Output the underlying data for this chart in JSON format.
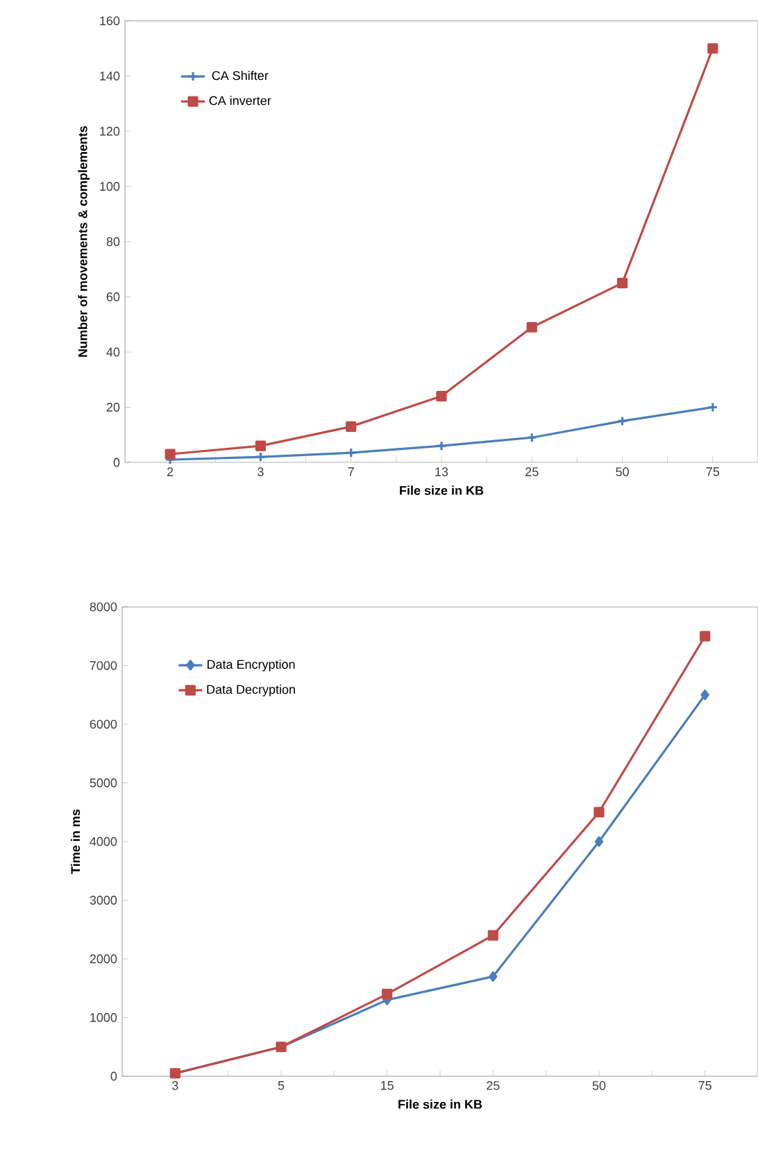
{
  "chart_data": [
    {
      "type": "line",
      "xlabel": "File size in KB",
      "ylabel": "Number of movements & complements",
      "categories": [
        "2",
        "3",
        "7",
        "13",
        "25",
        "50",
        "75"
      ],
      "ylim": [
        0,
        160
      ],
      "yticks": [
        0,
        20,
        40,
        60,
        80,
        100,
        120,
        140,
        160
      ],
      "legend": "top left",
      "grid": false,
      "series": [
        {
          "name": "CA Shifter",
          "color": "#4a7ebb",
          "marker": "cross",
          "values": [
            1,
            2,
            3.5,
            6,
            9,
            15,
            20
          ]
        },
        {
          "name": "CA inverter",
          "color": "#be4b48",
          "marker": "square",
          "values": [
            3,
            6,
            13,
            24,
            49,
            65,
            150
          ]
        }
      ]
    },
    {
      "type": "line",
      "xlabel": "File size in KB",
      "ylabel": "Time in ms",
      "categories": [
        "3",
        "5",
        "15",
        "25",
        "50",
        "75"
      ],
      "ylim": [
        0,
        8000
      ],
      "yticks": [
        0,
        1000,
        2000,
        3000,
        4000,
        5000,
        6000,
        7000,
        8000
      ],
      "legend": "top left",
      "grid": false,
      "series": [
        {
          "name": "Data Encryption",
          "color": "#4a7ebb",
          "marker": "diamond",
          "values": [
            50,
            500,
            1300,
            1700,
            4000,
            6500
          ]
        },
        {
          "name": "Data Decryption",
          "color": "#be4b48",
          "marker": "square",
          "values": [
            50,
            500,
            1400,
            2400,
            4500,
            7500
          ]
        }
      ]
    }
  ]
}
